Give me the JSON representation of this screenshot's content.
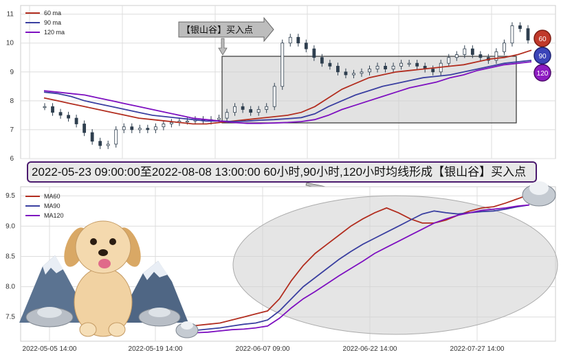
{
  "chart_data": [
    {
      "type": "line",
      "kind": "candlestick-with-moving-averages",
      "title": "",
      "xlabel": "",
      "ylabel": "",
      "ylim": [
        6,
        11.3
      ],
      "yticks": [
        6,
        7,
        8,
        9,
        10,
        11
      ],
      "grid": true,
      "legend_position": "top-left",
      "series": [
        {
          "name": "60 ma",
          "color": "#b22d1f",
          "values": [
            8.1,
            8.0,
            7.9,
            7.8,
            7.7,
            7.6,
            7.5,
            7.4,
            7.35,
            7.3,
            7.25,
            7.2,
            7.2,
            7.25,
            7.3,
            7.35,
            7.4,
            7.45,
            7.5,
            7.6,
            7.8,
            8.1,
            8.4,
            8.6,
            8.8,
            8.9,
            9.0,
            9.05,
            9.1,
            9.15,
            9.2,
            9.25,
            9.35,
            9.45,
            9.5,
            9.6,
            9.75
          ]
        },
        {
          "name": "90 ma",
          "color": "#3a3fa0",
          "values": [
            8.3,
            8.25,
            8.15,
            8.0,
            7.9,
            7.8,
            7.7,
            7.6,
            7.5,
            7.45,
            7.4,
            7.35,
            7.3,
            7.3,
            7.28,
            7.3,
            7.33,
            7.35,
            7.38,
            7.42,
            7.55,
            7.8,
            8.0,
            8.2,
            8.35,
            8.5,
            8.6,
            8.7,
            8.8,
            8.85,
            8.9,
            9.0,
            9.1,
            9.2,
            9.3,
            9.35,
            9.4
          ]
        },
        {
          "name": "120 ma",
          "color": "#7d0fc0",
          "values": [
            8.35,
            8.3,
            8.25,
            8.2,
            8.1,
            8.0,
            7.9,
            7.8,
            7.7,
            7.6,
            7.5,
            7.4,
            7.35,
            7.3,
            7.25,
            7.22,
            7.22,
            7.23,
            7.25,
            7.28,
            7.35,
            7.5,
            7.7,
            7.85,
            8.0,
            8.15,
            8.3,
            8.45,
            8.55,
            8.65,
            8.8,
            8.9,
            9.05,
            9.15,
            9.25,
            9.3,
            9.35
          ]
        }
      ],
      "candles": {
        "color": "#2f3f4f",
        "closes": [
          7.8,
          7.6,
          7.5,
          7.4,
          7.2,
          6.9,
          6.6,
          6.45,
          6.5,
          7.0,
          7.1,
          7.0,
          7.05,
          7.0,
          7.1,
          7.2,
          7.25,
          7.3,
          7.3,
          7.35,
          7.3,
          7.35,
          7.4,
          7.6,
          7.8,
          7.7,
          7.6,
          7.7,
          7.8,
          8.5,
          10.0,
          10.2,
          10.0,
          9.8,
          9.5,
          9.3,
          9.2,
          9.0,
          8.9,
          8.95,
          9.0,
          9.1,
          9.2,
          9.1,
          9.2,
          9.3,
          9.3,
          9.2,
          9.1,
          9.0,
          9.3,
          9.5,
          9.6,
          9.8,
          9.6,
          9.5,
          9.4,
          9.7,
          10.0,
          10.6,
          10.5,
          10.1
        ]
      },
      "annotations": {
        "callout": "【银山谷】买入点",
        "badges": [
          "60",
          "90",
          "120"
        ]
      }
    },
    {
      "type": "line",
      "title": "",
      "xlabel": "",
      "ylabel": "",
      "ylim": [
        7.1,
        9.65
      ],
      "yticks": [
        "7.5",
        "8.0",
        "8.5",
        "9.0",
        "9.5"
      ],
      "xticks": [
        "2022-05-05 14:00",
        "2022-05-19 14:00",
        "2022-06-07 09:00",
        "2022-06-22 14:00",
        "2022-07-27 14:00"
      ],
      "grid": true,
      "legend_position": "top-left",
      "series": [
        {
          "name": "MA60",
          "color": "#b22d1f",
          "values": [
            7.33,
            7.36,
            7.38,
            7.4,
            7.45,
            7.5,
            7.55,
            7.6,
            7.8,
            8.1,
            8.35,
            8.55,
            8.7,
            8.85,
            9.0,
            9.12,
            9.22,
            9.3,
            9.22,
            9.12,
            9.05,
            9.05,
            9.1,
            9.18,
            9.25,
            9.3,
            9.32,
            9.38,
            9.45,
            9.52
          ]
        },
        {
          "name": "MA90",
          "color": "#3a3fa0",
          "values": [
            7.26,
            7.28,
            7.3,
            7.32,
            7.35,
            7.38,
            7.4,
            7.45,
            7.6,
            7.8,
            8.0,
            8.15,
            8.3,
            8.45,
            8.58,
            8.7,
            8.8,
            8.9,
            9.0,
            9.1,
            9.2,
            9.25,
            9.22,
            9.2,
            9.22,
            9.24,
            9.25,
            9.28,
            9.32,
            9.35
          ]
        },
        {
          "name": "MA120",
          "color": "#7d0fc0",
          "values": [
            7.23,
            7.24,
            7.25,
            7.27,
            7.29,
            7.3,
            7.32,
            7.35,
            7.48,
            7.65,
            7.8,
            7.92,
            8.05,
            8.18,
            8.3,
            8.42,
            8.55,
            8.65,
            8.75,
            8.85,
            8.95,
            9.05,
            9.12,
            9.18,
            9.22,
            9.26,
            9.28,
            9.3,
            9.33,
            9.35
          ]
        }
      ]
    }
  ],
  "banner": "2022-05-23 09:00:00至2022-08-08 13:00:00 60小时,90小时,120小时均线形成【银山谷】买入点"
}
